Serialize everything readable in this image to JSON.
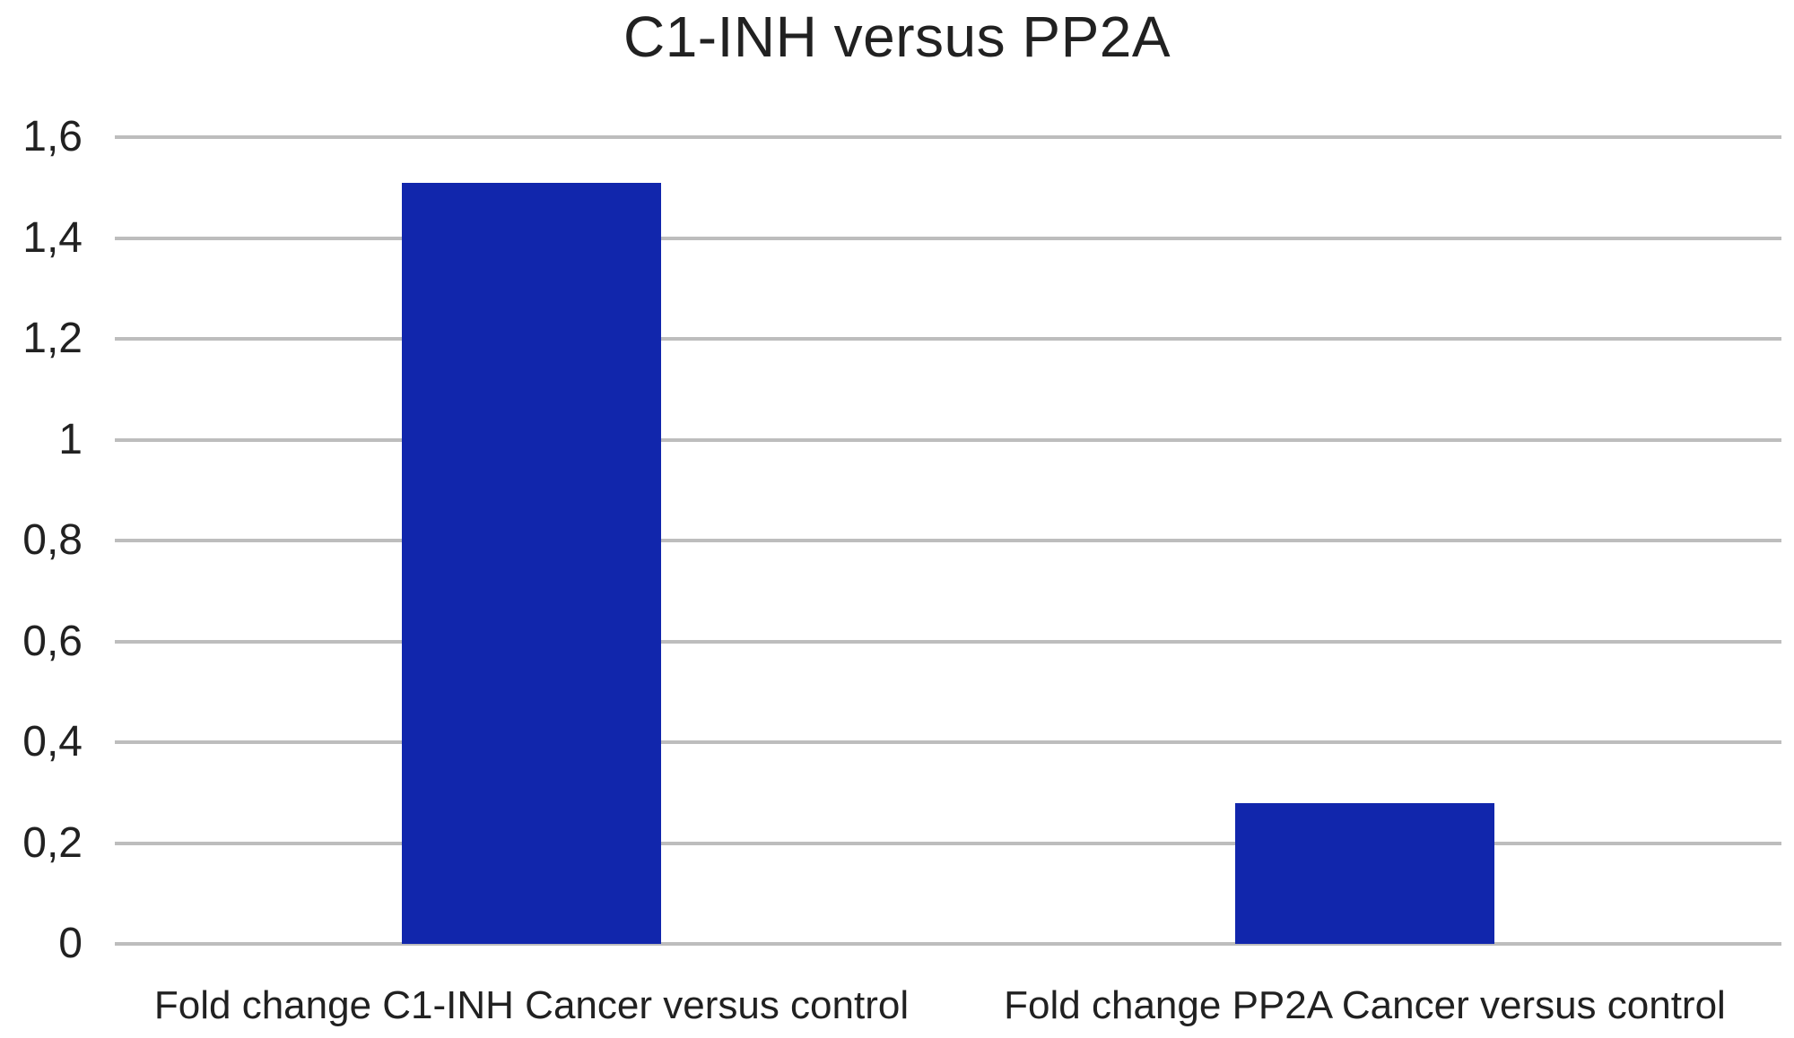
{
  "chart_data": {
    "type": "bar",
    "title": "C1-INH versus PP2A",
    "categories": [
      "Fold change C1-INH Cancer versus control",
      "Fold change PP2A Cancer versus control"
    ],
    "values": [
      1.51,
      0.28
    ],
    "xlabel": "",
    "ylabel": "",
    "ylim": [
      0,
      1.6
    ],
    "yticks": [
      {
        "value": 0,
        "label": "0"
      },
      {
        "value": 0.2,
        "label": "0,2"
      },
      {
        "value": 0.4,
        "label": "0,4"
      },
      {
        "value": 0.6,
        "label": "0,6"
      },
      {
        "value": 0.8,
        "label": "0,8"
      },
      {
        "value": 1,
        "label": "1"
      },
      {
        "value": 1.2,
        "label": "1,2"
      },
      {
        "value": 1.4,
        "label": "1,4"
      },
      {
        "value": 1.6,
        "label": "1,6"
      }
    ],
    "decimal_separator": ",",
    "grid": true,
    "legend_position": "none",
    "bar_color": "#1126AC",
    "gridline_color": "#BDBDBD",
    "text_color": "#212121",
    "background_color": "#FFFFFF"
  }
}
